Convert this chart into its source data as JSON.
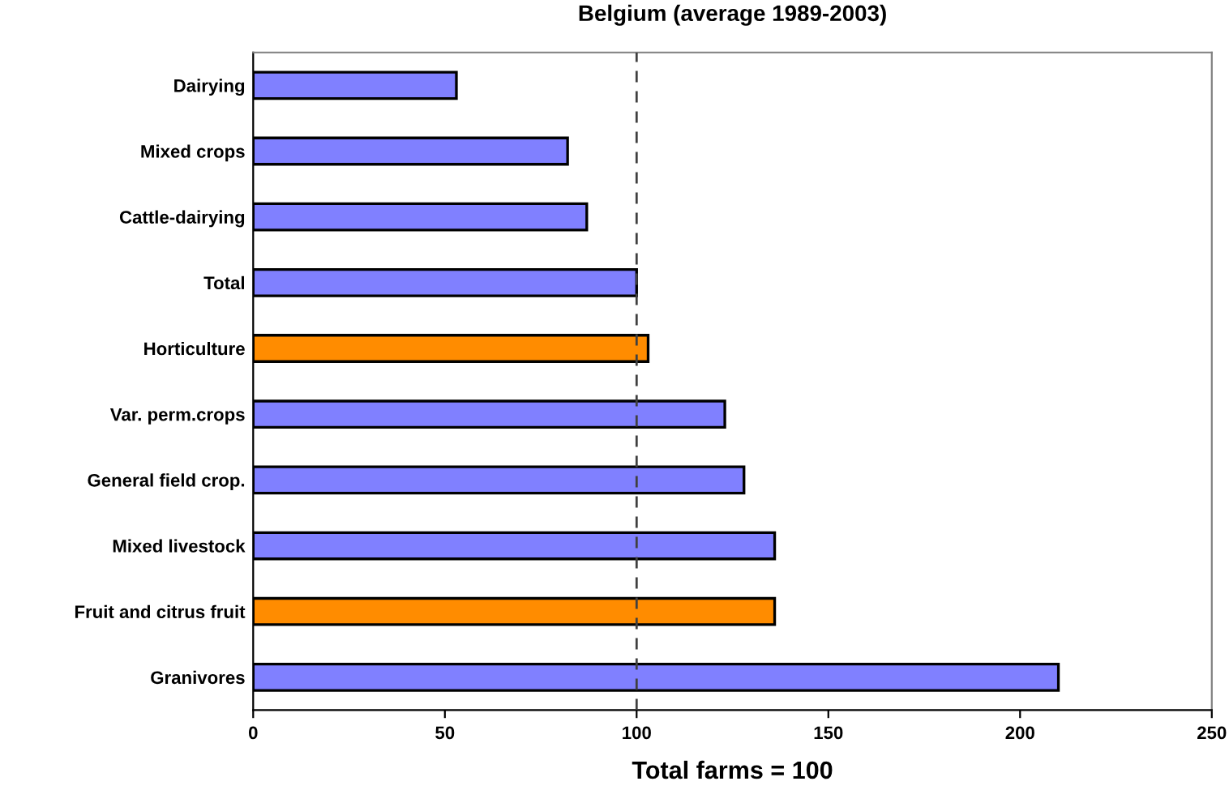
{
  "chart_data": {
    "type": "bar",
    "orientation": "horizontal",
    "title": "Belgium (average 1989-2003)",
    "xlabel": "Total farms = 100",
    "categories": [
      "Dairying",
      "Mixed crops",
      "Cattle-dairying",
      "Total",
      "Horticulture",
      "Var. perm.crops",
      "General field crop.",
      "Mixed livestock",
      "Fruit and citrus fruit",
      "Granivores"
    ],
    "values": [
      53,
      82,
      87,
      100,
      103,
      123,
      128,
      136,
      136,
      210
    ],
    "colors": [
      "#8080ff",
      "#8080ff",
      "#8080ff",
      "#8080ff",
      "#ff8c00",
      "#8080ff",
      "#8080ff",
      "#8080ff",
      "#ff8c00",
      "#8080ff"
    ],
    "xlim": [
      0,
      250
    ],
    "xticks": [
      0,
      50,
      100,
      150,
      200,
      250
    ],
    "ref_lines": [
      {
        "axis": "x",
        "value": 100,
        "color": "#404040",
        "line_style": "dashed"
      }
    ],
    "grid": false,
    "legend": false
  }
}
